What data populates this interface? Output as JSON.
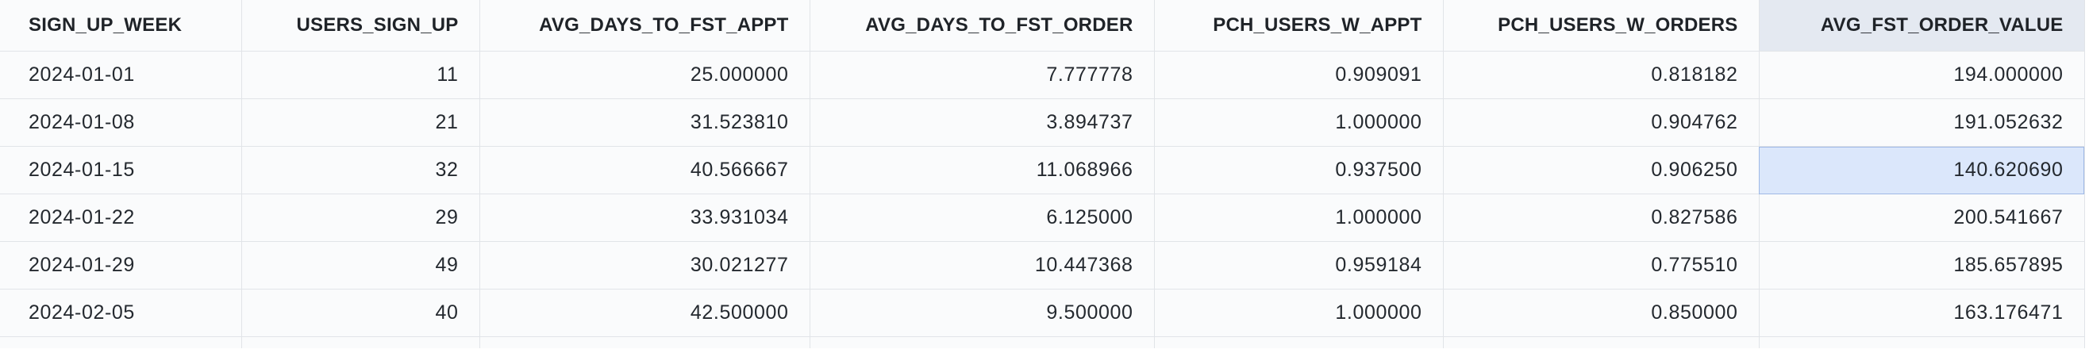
{
  "table": {
    "columns": [
      {
        "label": "SIGN_UP_WEEK",
        "align": "left"
      },
      {
        "label": "USERS_SIGN_UP",
        "align": "right"
      },
      {
        "label": "AVG_DAYS_TO_FST_APPT",
        "align": "right"
      },
      {
        "label": "AVG_DAYS_TO_FST_ORDER",
        "align": "right"
      },
      {
        "label": "PCH_USERS_W_APPT",
        "align": "right"
      },
      {
        "label": "PCH_USERS_W_ORDERS",
        "align": "right"
      },
      {
        "label": "AVG_FST_ORDER_VALUE",
        "align": "right"
      }
    ],
    "rows": [
      [
        "2024-01-01",
        "11",
        "25.000000",
        "7.777778",
        "0.909091",
        "0.818182",
        "194.000000"
      ],
      [
        "2024-01-08",
        "21",
        "31.523810",
        "3.894737",
        "1.000000",
        "0.904762",
        "191.052632"
      ],
      [
        "2024-01-15",
        "32",
        "40.566667",
        "11.068966",
        "0.937500",
        "0.906250",
        "140.620690"
      ],
      [
        "2024-01-22",
        "29",
        "33.931034",
        "6.125000",
        "1.000000",
        "0.827586",
        "200.541667"
      ],
      [
        "2024-01-29",
        "49",
        "30.021277",
        "10.447368",
        "0.959184",
        "0.775510",
        "185.657895"
      ],
      [
        "2024-02-05",
        "40",
        "42.500000",
        "9.500000",
        "1.000000",
        "0.850000",
        "163.176471"
      ]
    ],
    "selected_column_index": 6,
    "selected_cell": {
      "row": 2,
      "col": 6
    }
  },
  "colors": {
    "header_bg": "#fafbfc",
    "selected_header_bg": "#e4e9f1",
    "selected_cell_bg": "#dbe7fb",
    "grid_line": "#e1e4e8"
  }
}
